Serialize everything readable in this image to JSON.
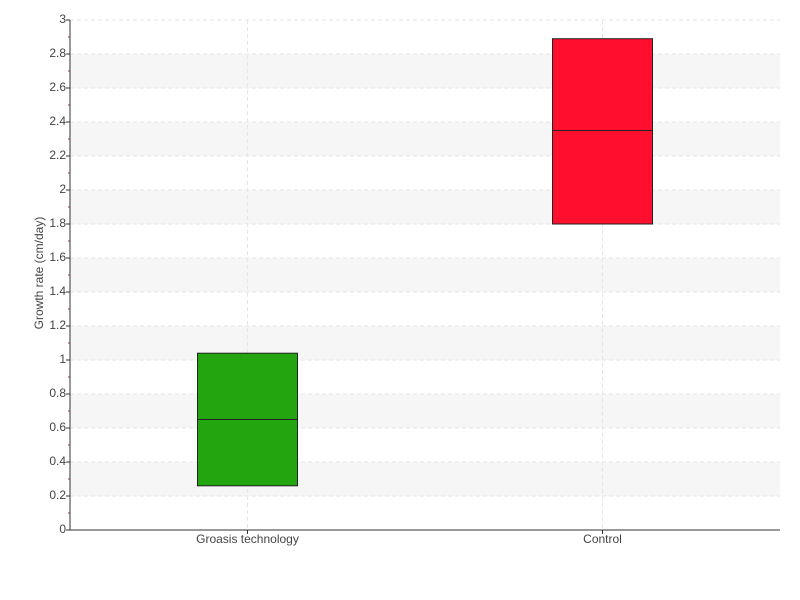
{
  "chart_data": {
    "type": "box",
    "y_label": "Growth rate (cm/day)",
    "categories": [
      "Groasis technology",
      "Control"
    ],
    "low": [
      0.26,
      1.8
    ],
    "median": [
      0.65,
      2.35
    ],
    "high": [
      1.04,
      2.89
    ],
    "colors": [
      "#22a50f",
      "#ff0f2d"
    ],
    "ylim": [
      0,
      3
    ],
    "yticks": [
      0,
      0.2,
      0.4,
      0.6,
      0.8,
      1,
      1.2,
      1.4,
      1.6,
      1.8,
      2,
      2.2,
      2.4,
      2.6,
      2.8,
      3
    ],
    "grid": true
  }
}
